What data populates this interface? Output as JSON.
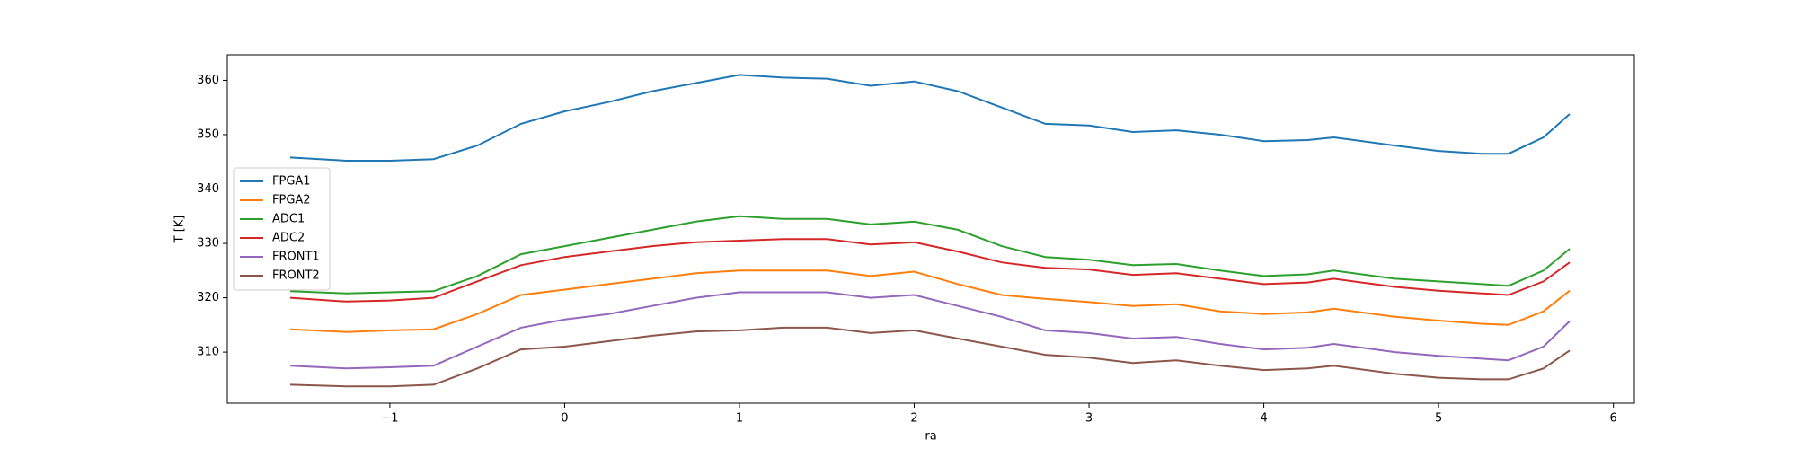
{
  "chart_data": {
    "type": "line",
    "x_label": "ra",
    "y_label": "T [K]",
    "x": [
      -1.57,
      -1.25,
      -1.0,
      -0.75,
      -0.5,
      -0.25,
      0,
      0.25,
      0.5,
      0.75,
      1.0,
      1.25,
      1.5,
      1.75,
      2.0,
      2.25,
      2.5,
      2.75,
      3.0,
      3.25,
      3.5,
      3.75,
      4.0,
      4.25,
      4.4,
      4.75,
      5.0,
      5.25,
      5.4,
      5.6,
      5.75
    ],
    "series": [
      {
        "name": "FPGA1",
        "color": "#1f77b4",
        "values": [
          345.8,
          345.2,
          345.2,
          345.5,
          348,
          352,
          354.3,
          356,
          358,
          359.5,
          361,
          360.5,
          360.3,
          359,
          359.8,
          358,
          355,
          352,
          351.7,
          350.5,
          350.8,
          350,
          348.8,
          349,
          349.5,
          348,
          347,
          346.5,
          346.5,
          349.5,
          353.8
        ]
      },
      {
        "name": "FPGA2",
        "color": "#ff7f0e",
        "values": [
          314.2,
          313.7,
          314,
          314.2,
          317,
          320.5,
          321.5,
          322.5,
          323.5,
          324.5,
          325,
          325,
          325,
          324,
          324.8,
          322.5,
          320.5,
          319.8,
          319.2,
          318.5,
          318.8,
          317.5,
          317,
          317.3,
          318,
          316.5,
          315.8,
          315.2,
          315,
          317.5,
          321.3
        ]
      },
      {
        "name": "ADC1",
        "color": "#2ca02c",
        "values": [
          321.2,
          320.8,
          321,
          321.2,
          324,
          328,
          329.5,
          331,
          332.5,
          334,
          335,
          334.5,
          334.5,
          333.5,
          334,
          332.5,
          329.5,
          327.5,
          327,
          326,
          326.2,
          325,
          324,
          324.3,
          325,
          323.5,
          323,
          322.5,
          322.2,
          325,
          329
        ]
      },
      {
        "name": "ADC2",
        "color": "#d62728",
        "values": [
          320,
          319.3,
          319.5,
          320,
          323,
          326,
          327.5,
          328.5,
          329.5,
          330.2,
          330.5,
          330.8,
          330.8,
          329.8,
          330.2,
          328.5,
          326.5,
          325.5,
          325.2,
          324.2,
          324.5,
          323.5,
          322.5,
          322.8,
          323.5,
          322,
          321.3,
          320.8,
          320.5,
          323,
          326.5
        ]
      },
      {
        "name": "FRONT1",
        "color": "#9467bd",
        "values": [
          307.5,
          307,
          307.2,
          307.5,
          311,
          314.5,
          316,
          317,
          318.5,
          320,
          321,
          321,
          321,
          320,
          320.5,
          318.5,
          316.5,
          314,
          313.5,
          312.5,
          312.8,
          311.5,
          310.5,
          310.8,
          311.5,
          310,
          309.3,
          308.8,
          308.5,
          311,
          315.7
        ]
      },
      {
        "name": "FRONT2",
        "color": "#8c564b",
        "values": [
          304,
          303.7,
          303.7,
          304,
          307,
          310.5,
          311,
          312,
          313,
          313.8,
          314,
          314.5,
          314.5,
          313.5,
          314,
          312.5,
          311,
          309.5,
          309,
          308,
          308.5,
          307.5,
          306.7,
          307,
          307.5,
          306,
          305.3,
          305,
          305,
          307,
          310.3
        ]
      }
    ],
    "xlim": [
      -1.93,
      6.12
    ],
    "ylim": [
      300.6,
      364.7
    ],
    "xticks": [
      {
        "value": -1,
        "label": "−1"
      },
      0,
      1,
      2,
      3,
      4,
      5,
      6
    ],
    "yticks": [
      310,
      320,
      330,
      340,
      350,
      360
    ],
    "legend": "center left"
  }
}
